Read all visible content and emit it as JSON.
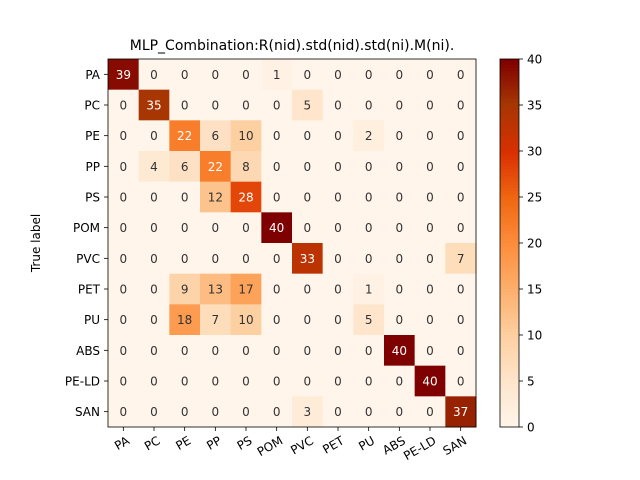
{
  "chart_data": {
    "type": "heatmap",
    "title": "MLP_Combination:R(nid).std(nid).std(ni).M(ni).",
    "xlabel": "",
    "ylabel": "True label",
    "x_categories": [
      "PA",
      "PC",
      "PE",
      "PP",
      "PS",
      "POM",
      "PVC",
      "PET",
      "PU",
      "ABS",
      "PE-LD",
      "SAN"
    ],
    "y_categories": [
      "PA",
      "PC",
      "PE",
      "PP",
      "PS",
      "POM",
      "PVC",
      "PET",
      "PU",
      "ABS",
      "PE-LD",
      "SAN"
    ],
    "matrix": [
      [
        39,
        0,
        0,
        0,
        0,
        1,
        0,
        0,
        0,
        0,
        0,
        0
      ],
      [
        0,
        35,
        0,
        0,
        0,
        0,
        5,
        0,
        0,
        0,
        0,
        0
      ],
      [
        0,
        0,
        22,
        6,
        10,
        0,
        0,
        0,
        2,
        0,
        0,
        0
      ],
      [
        0,
        4,
        6,
        22,
        8,
        0,
        0,
        0,
        0,
        0,
        0,
        0
      ],
      [
        0,
        0,
        0,
        12,
        28,
        0,
        0,
        0,
        0,
        0,
        0,
        0
      ],
      [
        0,
        0,
        0,
        0,
        0,
        40,
        0,
        0,
        0,
        0,
        0,
        0
      ],
      [
        0,
        0,
        0,
        0,
        0,
        0,
        33,
        0,
        0,
        0,
        0,
        7
      ],
      [
        0,
        0,
        9,
        13,
        17,
        0,
        0,
        0,
        1,
        0,
        0,
        0
      ],
      [
        0,
        0,
        18,
        7,
        10,
        0,
        0,
        0,
        5,
        0,
        0,
        0
      ],
      [
        0,
        0,
        0,
        0,
        0,
        0,
        0,
        0,
        0,
        40,
        0,
        0
      ],
      [
        0,
        0,
        0,
        0,
        0,
        0,
        0,
        0,
        0,
        0,
        40,
        0
      ],
      [
        0,
        0,
        0,
        0,
        0,
        0,
        3,
        0,
        0,
        0,
        0,
        37
      ]
    ],
    "colorbar": {
      "min": 0,
      "max": 40,
      "ticks": [
        0,
        5,
        10,
        15,
        20,
        25,
        30,
        35,
        40
      ],
      "colormap": "OrRd"
    },
    "grid": false
  }
}
